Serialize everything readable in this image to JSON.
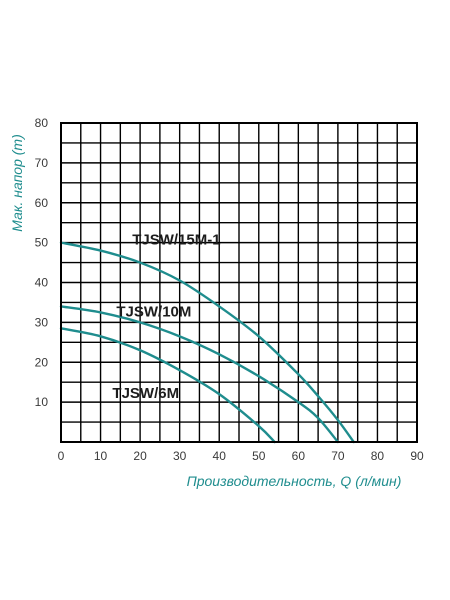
{
  "colors": {
    "curve": "#1f8d8e",
    "axis_title": "#1f8d8e",
    "grid": "#000000",
    "frame": "#000000",
    "label": "#1c1c1c"
  },
  "chart_data": {
    "type": "line",
    "title": "",
    "xlabel": "Производительность, Q (л/мин)",
    "ylabel": "Мак. напор (m)",
    "xlim": [
      0,
      90
    ],
    "ylim": [
      0,
      80
    ],
    "x_ticks": [
      "0",
      "10",
      "20",
      "30",
      "40",
      "50",
      "60",
      "70",
      "80",
      "90"
    ],
    "y_ticks": [
      "10",
      "20",
      "30",
      "40",
      "50",
      "60",
      "70",
      "80"
    ],
    "grid": true,
    "legend": "none",
    "series": [
      {
        "name": "TJSW/15M-1",
        "x": [
          0,
          10,
          20,
          30,
          40,
          50,
          60,
          65,
          70,
          74
        ],
        "y": [
          50,
          48,
          45,
          40.5,
          34,
          26.5,
          17,
          11.5,
          5.5,
          0
        ]
      },
      {
        "name": "TJSW/10M",
        "x": [
          0,
          10,
          20,
          30,
          40,
          50,
          60,
          65,
          70
        ],
        "y": [
          34,
          32.5,
          30,
          26.5,
          22,
          16.5,
          10,
          6,
          0
        ]
      },
      {
        "name": "TJSW/6M",
        "x": [
          0,
          10,
          20,
          30,
          40,
          50,
          54
        ],
        "y": [
          28.5,
          26.5,
          23,
          18,
          12,
          4,
          0
        ]
      }
    ],
    "annotations": [
      {
        "text": "TJSW/15M-1",
        "x": 18,
        "y": 49.5
      },
      {
        "text": "TJSW/10M",
        "x": 14,
        "y": 31.5
      },
      {
        "text": "TJSW/6M",
        "x": 13,
        "y": 11
      }
    ]
  }
}
